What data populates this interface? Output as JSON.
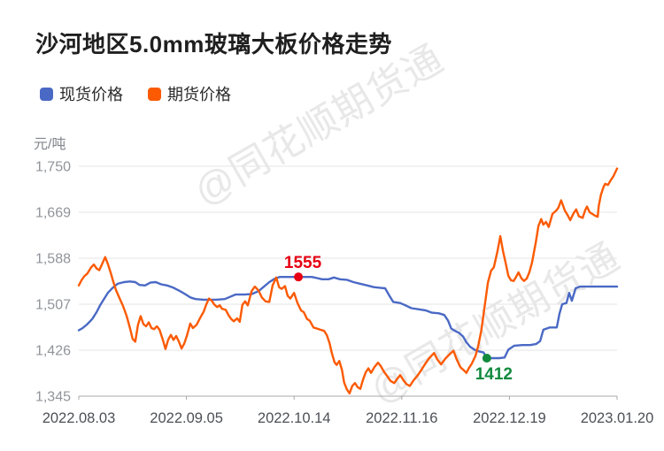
{
  "watermark": {
    "text": "@同花顺期货通"
  },
  "chart_data": {
    "type": "line",
    "title": "沙河地区5.0mm玻璃大板价格走势",
    "ylabel": "元/吨",
    "xlabel": "",
    "grid": true,
    "legend_position": "top-left",
    "ylim": [
      1345,
      1750
    ],
    "yticks": [
      {
        "value": 1750,
        "label": "1,750"
      },
      {
        "value": 1669,
        "label": "1,669"
      },
      {
        "value": 1588,
        "label": "1,588"
      },
      {
        "value": 1507,
        "label": "1,507"
      },
      {
        "value": 1426,
        "label": "1,426"
      },
      {
        "value": 1345,
        "label": "1,345"
      }
    ],
    "xticks": [
      "2022.08.03",
      "2022.09.05",
      "2022.10.14",
      "2022.11.16",
      "2022.12.19",
      "2023.01.20"
    ],
    "colors": {
      "spot": "#4a69c5",
      "futures": "#fb5a02",
      "high_label": "#e60012",
      "low_label": "#128a3e"
    },
    "series": [
      {
        "id": "spot-price",
        "name": "现货价格",
        "color": "#4a69c5",
        "points": [
          [
            0.0,
            1461
          ],
          [
            0.007,
            1465
          ],
          [
            0.016,
            1472
          ],
          [
            0.025,
            1481
          ],
          [
            0.033,
            1493
          ],
          [
            0.039,
            1504
          ],
          [
            0.046,
            1515
          ],
          [
            0.054,
            1527
          ],
          [
            0.063,
            1536
          ],
          [
            0.072,
            1543
          ],
          [
            0.084,
            1546
          ],
          [
            0.095,
            1547
          ],
          [
            0.105,
            1546
          ],
          [
            0.113,
            1541
          ],
          [
            0.123,
            1540
          ],
          [
            0.133,
            1545
          ],
          [
            0.143,
            1546
          ],
          [
            0.153,
            1542
          ],
          [
            0.164,
            1540
          ],
          [
            0.176,
            1536
          ],
          [
            0.188,
            1530
          ],
          [
            0.197,
            1525
          ],
          [
            0.207,
            1519
          ],
          [
            0.217,
            1516
          ],
          [
            0.232,
            1515
          ],
          [
            0.255,
            1515
          ],
          [
            0.271,
            1516
          ],
          [
            0.281,
            1520
          ],
          [
            0.291,
            1524
          ],
          [
            0.308,
            1524
          ],
          [
            0.322,
            1525
          ],
          [
            0.334,
            1530
          ],
          [
            0.344,
            1538
          ],
          [
            0.354,
            1546
          ],
          [
            0.364,
            1552
          ],
          [
            0.373,
            1555
          ],
          [
            0.396,
            1555
          ],
          [
            0.416,
            1555
          ],
          [
            0.433,
            1555
          ],
          [
            0.443,
            1553
          ],
          [
            0.452,
            1551
          ],
          [
            0.464,
            1551
          ],
          [
            0.474,
            1554
          ],
          [
            0.485,
            1551
          ],
          [
            0.498,
            1550
          ],
          [
            0.51,
            1546
          ],
          [
            0.523,
            1543
          ],
          [
            0.536,
            1540
          ],
          [
            0.548,
            1537
          ],
          [
            0.559,
            1536
          ],
          [
            0.569,
            1535
          ],
          [
            0.577,
            1522
          ],
          [
            0.584,
            1511
          ],
          [
            0.597,
            1509
          ],
          [
            0.609,
            1504
          ],
          [
            0.618,
            1500
          ],
          [
            0.632,
            1498
          ],
          [
            0.645,
            1496
          ],
          [
            0.656,
            1492
          ],
          [
            0.669,
            1491
          ],
          [
            0.679,
            1488
          ],
          [
            0.686,
            1478
          ],
          [
            0.692,
            1464
          ],
          [
            0.701,
            1459
          ],
          [
            0.707,
            1456
          ],
          [
            0.714,
            1450
          ],
          [
            0.72,
            1440
          ],
          [
            0.727,
            1432
          ],
          [
            0.735,
            1427
          ],
          [
            0.743,
            1424
          ],
          [
            0.752,
            1422
          ],
          [
            0.758,
            1412
          ],
          [
            0.77,
            1412
          ],
          [
            0.781,
            1412
          ],
          [
            0.791,
            1413
          ],
          [
            0.798,
            1427
          ],
          [
            0.809,
            1434
          ],
          [
            0.824,
            1435
          ],
          [
            0.839,
            1435
          ],
          [
            0.85,
            1437
          ],
          [
            0.857,
            1442
          ],
          [
            0.863,
            1462
          ],
          [
            0.875,
            1466
          ],
          [
            0.888,
            1466
          ],
          [
            0.893,
            1490
          ],
          [
            0.898,
            1507
          ],
          [
            0.906,
            1509
          ],
          [
            0.911,
            1527
          ],
          [
            0.916,
            1513
          ],
          [
            0.923,
            1535
          ],
          [
            0.931,
            1538
          ],
          [
            0.952,
            1538
          ],
          [
            0.975,
            1538
          ],
          [
            1.0,
            1538
          ]
        ]
      },
      {
        "id": "futures-price",
        "name": "期货价格",
        "color": "#fb5a02",
        "points": [
          [
            0.0,
            1540
          ],
          [
            0.005,
            1549
          ],
          [
            0.01,
            1556
          ],
          [
            0.016,
            1561
          ],
          [
            0.023,
            1572
          ],
          [
            0.028,
            1577
          ],
          [
            0.033,
            1570
          ],
          [
            0.038,
            1567
          ],
          [
            0.043,
            1577
          ],
          [
            0.049,
            1590
          ],
          [
            0.054,
            1578
          ],
          [
            0.059,
            1563
          ],
          [
            0.064,
            1547
          ],
          [
            0.069,
            1532
          ],
          [
            0.076,
            1517
          ],
          [
            0.082,
            1504
          ],
          [
            0.089,
            1486
          ],
          [
            0.095,
            1465
          ],
          [
            0.1,
            1446
          ],
          [
            0.105,
            1441
          ],
          [
            0.11,
            1471
          ],
          [
            0.115,
            1486
          ],
          [
            0.12,
            1472
          ],
          [
            0.125,
            1468
          ],
          [
            0.13,
            1475
          ],
          [
            0.135,
            1465
          ],
          [
            0.14,
            1463
          ],
          [
            0.145,
            1468
          ],
          [
            0.15,
            1462
          ],
          [
            0.156,
            1445
          ],
          [
            0.161,
            1428
          ],
          [
            0.166,
            1444
          ],
          [
            0.171,
            1453
          ],
          [
            0.176,
            1444
          ],
          [
            0.181,
            1451
          ],
          [
            0.186,
            1441
          ],
          [
            0.191,
            1429
          ],
          [
            0.196,
            1438
          ],
          [
            0.201,
            1452
          ],
          [
            0.207,
            1473
          ],
          [
            0.212,
            1465
          ],
          [
            0.219,
            1471
          ],
          [
            0.225,
            1482
          ],
          [
            0.232,
            1494
          ],
          [
            0.237,
            1507
          ],
          [
            0.242,
            1517
          ],
          [
            0.247,
            1513
          ],
          [
            0.252,
            1506
          ],
          [
            0.257,
            1502
          ],
          [
            0.262,
            1505
          ],
          [
            0.266,
            1499
          ],
          [
            0.273,
            1497
          ],
          [
            0.278,
            1488
          ],
          [
            0.283,
            1481
          ],
          [
            0.288,
            1477
          ],
          [
            0.294,
            1482
          ],
          [
            0.299,
            1476
          ],
          [
            0.304,
            1506
          ],
          [
            0.309,
            1512
          ],
          [
            0.314,
            1505
          ],
          [
            0.321,
            1530
          ],
          [
            0.327,
            1538
          ],
          [
            0.334,
            1531
          ],
          [
            0.34,
            1519
          ],
          [
            0.347,
            1512
          ],
          [
            0.354,
            1511
          ],
          [
            0.36,
            1540
          ],
          [
            0.367,
            1554
          ],
          [
            0.372,
            1537
          ],
          [
            0.377,
            1534
          ],
          [
            0.383,
            1539
          ],
          [
            0.388,
            1522
          ],
          [
            0.393,
            1517
          ],
          [
            0.4,
            1527
          ],
          [
            0.406,
            1510
          ],
          [
            0.413,
            1496
          ],
          [
            0.418,
            1493
          ],
          [
            0.424,
            1481
          ],
          [
            0.429,
            1478
          ],
          [
            0.436,
            1466
          ],
          [
            0.443,
            1464
          ],
          [
            0.449,
            1462
          ],
          [
            0.456,
            1460
          ],
          [
            0.461,
            1452
          ],
          [
            0.466,
            1438
          ],
          [
            0.47,
            1421
          ],
          [
            0.475,
            1405
          ],
          [
            0.479,
            1400
          ],
          [
            0.484,
            1407
          ],
          [
            0.489,
            1391
          ],
          [
            0.493,
            1369
          ],
          [
            0.498,
            1357
          ],
          [
            0.503,
            1350
          ],
          [
            0.508,
            1363
          ],
          [
            0.513,
            1368
          ],
          [
            0.518,
            1361
          ],
          [
            0.523,
            1358
          ],
          [
            0.528,
            1374
          ],
          [
            0.533,
            1387
          ],
          [
            0.538,
            1394
          ],
          [
            0.543,
            1386
          ],
          [
            0.549,
            1396
          ],
          [
            0.556,
            1404
          ],
          [
            0.561,
            1398
          ],
          [
            0.567,
            1388
          ],
          [
            0.574,
            1379
          ],
          [
            0.579,
            1372
          ],
          [
            0.586,
            1368
          ],
          [
            0.592,
            1376
          ],
          [
            0.597,
            1382
          ],
          [
            0.604,
            1372
          ],
          [
            0.609,
            1366
          ],
          [
            0.615,
            1363
          ],
          [
            0.622,
            1373
          ],
          [
            0.63,
            1382
          ],
          [
            0.637,
            1392
          ],
          [
            0.643,
            1401
          ],
          [
            0.651,
            1412
          ],
          [
            0.66,
            1421
          ],
          [
            0.666,
            1410
          ],
          [
            0.673,
            1401
          ],
          [
            0.681,
            1411
          ],
          [
            0.689,
            1419
          ],
          [
            0.696,
            1425
          ],
          [
            0.702,
            1410
          ],
          [
            0.709,
            1396
          ],
          [
            0.716,
            1390
          ],
          [
            0.72,
            1386
          ],
          [
            0.725,
            1395
          ],
          [
            0.73,
            1402
          ],
          [
            0.737,
            1416
          ],
          [
            0.742,
            1433
          ],
          [
            0.748,
            1462
          ],
          [
            0.755,
            1510
          ],
          [
            0.76,
            1545
          ],
          [
            0.766,
            1566
          ],
          [
            0.771,
            1572
          ],
          [
            0.778,
            1601
          ],
          [
            0.783,
            1627
          ],
          [
            0.788,
            1601
          ],
          [
            0.793,
            1580
          ],
          [
            0.798,
            1557
          ],
          [
            0.803,
            1549
          ],
          [
            0.808,
            1548
          ],
          [
            0.813,
            1556
          ],
          [
            0.817,
            1563
          ],
          [
            0.822,
            1553
          ],
          [
            0.827,
            1548
          ],
          [
            0.832,
            1552
          ],
          [
            0.837,
            1563
          ],
          [
            0.842,
            1580
          ],
          [
            0.849,
            1616
          ],
          [
            0.854,
            1645
          ],
          [
            0.859,
            1657
          ],
          [
            0.863,
            1647
          ],
          [
            0.868,
            1652
          ],
          [
            0.873,
            1643
          ],
          [
            0.88,
            1666
          ],
          [
            0.887,
            1672
          ],
          [
            0.891,
            1677
          ],
          [
            0.896,
            1690
          ],
          [
            0.903,
            1672
          ],
          [
            0.908,
            1664
          ],
          [
            0.913,
            1655
          ],
          [
            0.919,
            1667
          ],
          [
            0.924,
            1674
          ],
          [
            0.929,
            1662
          ],
          [
            0.936,
            1659
          ],
          [
            0.941,
            1673
          ],
          [
            0.944,
            1679
          ],
          [
            0.949,
            1669
          ],
          [
            0.954,
            1666
          ],
          [
            0.959,
            1663
          ],
          [
            0.964,
            1661
          ],
          [
            0.966,
            1680
          ],
          [
            0.97,
            1700
          ],
          [
            0.975,
            1714
          ],
          [
            0.978,
            1719
          ],
          [
            0.983,
            1717
          ],
          [
            0.988,
            1725
          ],
          [
            0.993,
            1732
          ],
          [
            1.0,
            1746
          ]
        ]
      }
    ],
    "annotations": [
      {
        "label": "1555",
        "series": "spot-price",
        "t": 0.408,
        "value": 1555,
        "color": "#e60012",
        "label_offset": [
          5,
          -10
        ]
      },
      {
        "label": "1412",
        "series": "spot-price",
        "t": 0.758,
        "value": 1412,
        "color": "#128a3e",
        "label_offset": [
          8,
          24
        ]
      }
    ]
  }
}
